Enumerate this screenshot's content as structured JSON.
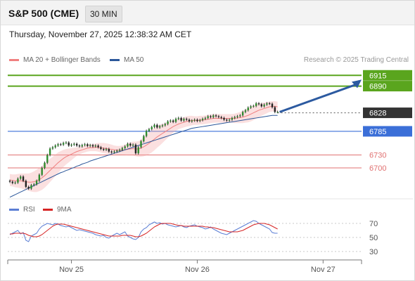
{
  "header": {
    "title": "S&P 500 (CME)",
    "timeframe": "30 MIN",
    "timestamp": "Thursday, November 27, 2025 12:38:32 AM CET"
  },
  "legend": {
    "ma_bb_label": "MA 20 + Bollinger Bands",
    "ma50_label": "MA 50",
    "copyright": "Research © 2025 Trading Central",
    "rsi_label": "RSI",
    "rsi_ma_label": "9MA"
  },
  "colors": {
    "bollinger": "#f4a7a7",
    "ma20": "#f08080",
    "ma50": "#2b579a",
    "target": "#5aa51e",
    "pivot": "#3b6fd8",
    "support": "#e07070",
    "last": "#333333",
    "arrow": "#2c5aa0",
    "rsi": "#5b7ed4",
    "rsi_ma": "#d62424"
  },
  "levels": [
    {
      "value": 6915,
      "label": "6915",
      "kind": "target"
    },
    {
      "value": 6890,
      "label": "6890",
      "kind": "target"
    },
    {
      "value": 6828,
      "label": "6828",
      "kind": "last"
    },
    {
      "value": 6785,
      "label": "6785",
      "kind": "pivot"
    },
    {
      "value": 6730,
      "label": "6730",
      "kind": "support"
    },
    {
      "value": 6700,
      "label": "6700",
      "kind": "support"
    }
  ],
  "chart_data": [
    {
      "type": "candlestick",
      "title": "S&P 500 (CME)",
      "ylim": [
        6625,
        6935
      ],
      "x_tick_labels": [
        "Nov 25",
        "Nov 26",
        "Nov 27"
      ],
      "x_tick_index": [
        23,
        70,
        117
      ],
      "n_bars": 130,
      "close": [
        6668,
        6665,
        6666,
        6675,
        6680,
        6670,
        6656,
        6652,
        6660,
        6662,
        6670,
        6684,
        6700,
        6712,
        6730,
        6745,
        6748,
        6752,
        6755,
        6754,
        6758,
        6759,
        6752,
        6754,
        6756,
        6752,
        6750,
        6753,
        6755,
        6751,
        6753,
        6750,
        6752,
        6748,
        6744,
        6742,
        6744,
        6738,
        6736,
        6738,
        6740,
        6742,
        6746,
        6750,
        6756,
        6752,
        6754,
        6734,
        6748,
        6762,
        6774,
        6786,
        6790,
        6795,
        6800,
        6794,
        6797,
        6799,
        6802,
        6808,
        6810,
        6807,
        6814,
        6816,
        6810,
        6814,
        6812,
        6808,
        6810,
        6812,
        6809,
        6811,
        6814,
        6816,
        6820,
        6818,
        6822,
        6820,
        6818,
        6816,
        6812,
        6810,
        6812,
        6816,
        6818,
        6820,
        6822,
        6830,
        6834,
        6840,
        6843,
        6844,
        6850,
        6848,
        6843,
        6847,
        6850,
        6849,
        6841,
        6830,
        6830
      ],
      "open": [
        6670,
        6668,
        6665,
        6666,
        6675,
        6680,
        6670,
        6656,
        6652,
        6660,
        6662,
        6670,
        6684,
        6700,
        6712,
        6730,
        6745,
        6748,
        6752,
        6755,
        6754,
        6758,
        6759,
        6752,
        6754,
        6756,
        6752,
        6750,
        6753,
        6755,
        6751,
        6753,
        6750,
        6752,
        6748,
        6744,
        6742,
        6744,
        6738,
        6736,
        6738,
        6740,
        6742,
        6746,
        6750,
        6756,
        6752,
        6754,
        6734,
        6748,
        6762,
        6774,
        6786,
        6790,
        6795,
        6800,
        6794,
        6797,
        6799,
        6802,
        6808,
        6810,
        6807,
        6814,
        6816,
        6810,
        6814,
        6812,
        6808,
        6810,
        6812,
        6809,
        6811,
        6814,
        6816,
        6820,
        6818,
        6822,
        6820,
        6818,
        6816,
        6812,
        6810,
        6812,
        6816,
        6818,
        6820,
        6822,
        6830,
        6834,
        6840,
        6843,
        6844,
        6850,
        6848,
        6843,
        6847,
        6850,
        6849,
        6841,
        6830
      ],
      "ma20": [
        6672,
        6671,
        6670,
        6670,
        6670,
        6669,
        6668,
        6667,
        6667,
        6668,
        6670,
        6673,
        6677,
        6682,
        6688,
        6694,
        6700,
        6706,
        6712,
        6717,
        6722,
        6726,
        6729,
        6732,
        6735,
        6738,
        6740,
        6742,
        6744,
        6746,
        6747,
        6747,
        6748,
        6748,
        6747,
        6746,
        6745,
        6744,
        6743,
        6742,
        6741,
        6741,
        6741,
        6742,
        6743,
        6744,
        6745,
        6744,
        6744,
        6746,
        6749,
        6753,
        6757,
        6762,
        6767,
        6772,
        6776,
        6780,
        6784,
        6788,
        6792,
        6796,
        6799,
        6802,
        6804,
        6806,
        6808,
        6809,
        6810,
        6810,
        6810,
        6811,
        6811,
        6812,
        6813,
        6814,
        6815,
        6815,
        6815,
        6815,
        6815,
        6815,
        6815,
        6815,
        6815,
        6816,
        6817,
        6818,
        6820,
        6822,
        6825,
        6828,
        6831,
        6834,
        6836,
        6838,
        6840,
        6842,
        6843,
        6843,
        6842
      ],
      "bb_width": [
        14,
        14,
        15,
        16,
        17,
        18,
        19,
        20,
        22,
        24,
        26,
        27,
        28,
        28,
        28,
        27,
        26,
        25,
        24,
        22,
        20,
        18,
        16,
        14,
        12,
        10,
        9,
        8,
        8,
        8,
        8,
        8,
        9,
        10,
        11,
        12,
        12,
        12,
        11,
        10,
        10,
        10,
        11,
        12,
        14,
        15,
        16,
        17,
        18,
        20,
        22,
        24,
        25,
        26,
        26,
        25,
        24,
        22,
        20,
        18,
        16,
        14,
        13,
        12,
        12,
        12,
        12,
        12,
        11,
        10,
        10,
        10,
        10,
        10,
        10,
        10,
        10,
        10,
        10,
        10,
        10,
        10,
        10,
        10,
        11,
        12,
        13,
        14,
        15,
        16,
        17,
        17,
        17,
        16,
        15,
        14,
        13,
        12,
        12,
        12,
        12
      ],
      "ma50": [
        6632,
        6635,
        6638,
        6641,
        6644,
        6647,
        6650,
        6653,
        6656,
        6659,
        6662,
        6665,
        6668,
        6671,
        6674,
        6677,
        6680,
        6683,
        6686,
        6689,
        6691,
        6694,
        6696,
        6699,
        6701,
        6704,
        6706,
        6709,
        6711,
        6713,
        6716,
        6718,
        6720,
        6722,
        6724,
        6726,
        6728,
        6730,
        6732,
        6734,
        6736,
        6738,
        6740,
        6742,
        6744,
        6746,
        6748,
        6750,
        6752,
        6754,
        6756,
        6758,
        6760,
        6762,
        6764,
        6766,
        6768,
        6770,
        6772,
        6774,
        6776,
        6778,
        6780,
        6782,
        6784,
        6786,
        6788,
        6790,
        6792,
        6793,
        6794,
        6795,
        6796,
        6797,
        6798,
        6799,
        6800,
        6801,
        6802,
        6803,
        6804,
        6805,
        6806,
        6807,
        6808,
        6809,
        6810,
        6811,
        6812,
        6813,
        6814,
        6815,
        6816,
        6817,
        6818,
        6819,
        6820,
        6821,
        6822,
        6822,
        6822
      ],
      "last": 6828,
      "projection": {
        "from": 6830,
        "to": 6905
      }
    },
    {
      "type": "line",
      "title": "RSI",
      "ylim": [
        20,
        80
      ],
      "y_ticks": [
        70,
        50,
        30
      ],
      "series": [
        {
          "name": "RSI",
          "values": [
            54,
            56,
            58,
            60,
            55,
            57,
            46,
            44,
            52,
            54,
            56,
            62,
            66,
            68,
            70,
            69,
            68,
            70,
            69,
            67,
            66,
            65,
            66,
            64,
            62,
            60,
            61,
            60,
            59,
            58,
            57,
            56,
            54,
            53,
            52,
            53,
            50,
            49,
            52,
            54,
            56,
            54,
            56,
            58,
            52,
            50,
            48,
            47,
            50,
            58,
            62,
            64,
            68,
            70,
            72,
            70,
            71,
            69,
            70,
            68,
            67,
            66,
            65,
            66,
            67,
            65,
            64,
            66,
            67,
            68,
            66,
            65,
            64,
            62,
            63,
            65,
            62,
            60,
            58,
            56,
            55,
            54,
            56,
            58,
            60,
            62,
            64,
            66,
            68,
            70,
            72,
            74,
            73,
            70,
            68,
            66,
            64,
            62,
            57,
            56,
            56
          ]
        },
        {
          "name": "9MA",
          "values": [
            55,
            55,
            56,
            56,
            56,
            56,
            55,
            53,
            52,
            51,
            51,
            52,
            54,
            57,
            60,
            63,
            66,
            68,
            69,
            69,
            69,
            68,
            67,
            66,
            65,
            64,
            63,
            62,
            61,
            60,
            59,
            58,
            57,
            56,
            55,
            54,
            53,
            52,
            52,
            52,
            52,
            52,
            53,
            53,
            53,
            53,
            52,
            51,
            51,
            52,
            54,
            56,
            59,
            62,
            65,
            67,
            69,
            70,
            70,
            70,
            70,
            69,
            68,
            67,
            67,
            66,
            66,
            66,
            66,
            66,
            66,
            66,
            66,
            65,
            65,
            64,
            64,
            63,
            62,
            61,
            60,
            59,
            58,
            58,
            58,
            58,
            59,
            60,
            62,
            64,
            66,
            68,
            69,
            70,
            70,
            70,
            69,
            68,
            66,
            64,
            62
          ]
        }
      ]
    }
  ]
}
